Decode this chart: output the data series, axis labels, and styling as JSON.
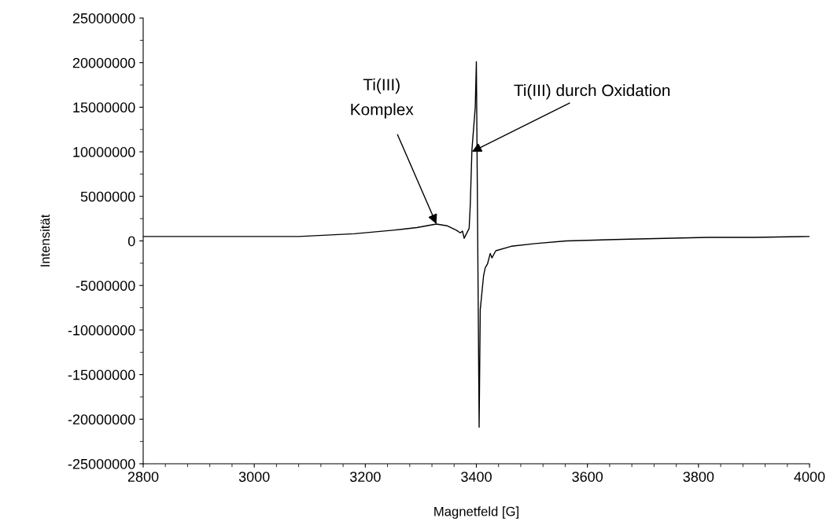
{
  "chart_data": {
    "type": "line",
    "xlabel": "Magnetfeld [G]",
    "ylabel": "Intensität",
    "series": [
      {
        "color": "#000000",
        "x": [
          2800,
          2900,
          3000,
          3080,
          3180,
          3250,
          3293,
          3328,
          3347,
          3364,
          3371,
          3375,
          3378,
          3387,
          3389,
          3392,
          3398,
          3400,
          3405,
          3407,
          3413,
          3416,
          3420,
          3425,
          3428,
          3435,
          3463,
          3506,
          3562,
          3676,
          3817,
          3900,
          4000
        ],
        "values": [
          500000,
          500000,
          500000,
          500000,
          800000,
          1200000,
          1500000,
          1900000,
          1700000,
          1200000,
          900000,
          1100000,
          300000,
          1400000,
          4000000,
          10200000,
          15000000,
          20100000,
          -20900000,
          -7700000,
          -3900000,
          -3000000,
          -2600000,
          -1400000,
          -1900000,
          -1100000,
          -600000,
          -300000,
          0,
          200000,
          400000,
          400000,
          500000
        ]
      }
    ],
    "xlim": [
      2800,
      4000
    ],
    "xticks": [
      2800,
      3000,
      3200,
      3400,
      3600,
      3800,
      4000
    ],
    "ylim": [
      -25000000,
      25000000
    ],
    "yticks": [
      -25000000,
      -20000000,
      -15000000,
      -10000000,
      -5000000,
      0,
      5000000,
      10000000,
      15000000,
      20000000,
      25000000
    ],
    "annotations": [
      {
        "text": "Ti(III)\nKomplex",
        "x": 3328,
        "y": 1900000
      },
      {
        "text": "Ti(III) durch Oxidation",
        "x": 3392,
        "y": 10000000
      }
    ],
    "grid": false,
    "marker": "none",
    "line_style": "solid"
  }
}
